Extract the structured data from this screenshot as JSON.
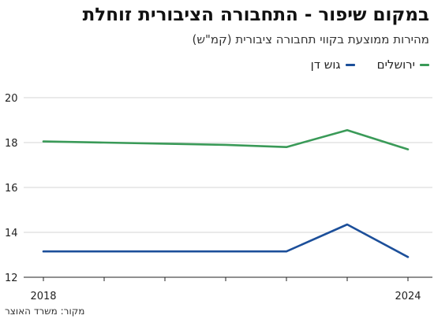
{
  "header": {
    "title": "במקום שיפור - התחבורה הציבורית זוחלת",
    "subtitle": "מהירות ממוצעת בקווי תחבורה ציבורית (קמ\"ש)"
  },
  "footer": {
    "source": "מקור: משרד האוצר"
  },
  "chart_data": {
    "type": "line",
    "x": [
      2018,
      2019,
      2020,
      2021,
      2022,
      2023,
      2024
    ],
    "series": [
      {
        "name": "ירושלים",
        "color": "#3a9a58",
        "values": [
          18.05,
          18.0,
          17.95,
          17.9,
          17.8,
          18.55,
          17.7
        ]
      },
      {
        "name": "גוש דן",
        "color": "#1c4f9a",
        "values": [
          13.15,
          13.15,
          13.15,
          13.15,
          13.15,
          14.35,
          12.9
        ]
      }
    ],
    "xticklabels": [
      "2018",
      "2024"
    ],
    "yticks": [
      12,
      14,
      16,
      18,
      20
    ],
    "ylim": [
      12,
      20
    ],
    "xlim": [
      2018,
      2024
    ],
    "grid": "horizontal",
    "legend_position": "top-right"
  }
}
